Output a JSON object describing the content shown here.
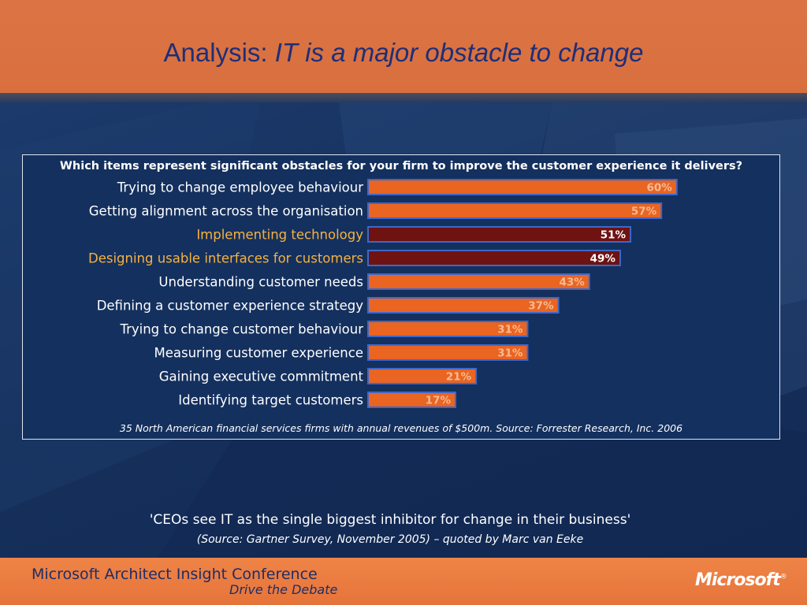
{
  "slide": {
    "title_prefix": "Analysis: ",
    "title_italic": "IT is a major obstacle to change"
  },
  "chart_data": {
    "type": "bar",
    "orientation": "horizontal",
    "title": "Which items represent significant obstacles for your firm to improve the customer experience it delivers?",
    "categories": [
      "Trying to change employee behaviour",
      "Getting alignment across the organisation",
      "Implementing technology",
      "Designing usable interfaces for customers",
      "Understanding customer needs",
      "Defining a customer experience strategy",
      "Trying to change customer behaviour",
      "Measuring customer experience",
      "Gaining executive commitment",
      "Identifying target customers"
    ],
    "values": [
      60,
      57,
      51,
      49,
      43,
      37,
      31,
      31,
      21,
      17
    ],
    "value_labels": [
      "60%",
      "57%",
      "51%",
      "49%",
      "43%",
      "37%",
      "31%",
      "31%",
      "21%",
      "17%"
    ],
    "highlighted": [
      false,
      false,
      true,
      true,
      false,
      false,
      false,
      false,
      false,
      false
    ],
    "colors": {
      "bar": "#ea6422",
      "bar_highlight": "#6e1212",
      "bar_border": "#3d68c9",
      "value_label": "#f6bb93",
      "value_label_highlight": "#ffffff",
      "category_label": "#ffffff",
      "category_label_highlight": "#f7b240"
    },
    "grid": false,
    "legend": "none",
    "footnote": "35 North American financial services firms with annual revenues of $500m.  Source: Forrester Research, Inc.  2006"
  },
  "quote": {
    "text": "'CEOs see IT as the single biggest inhibitor for change in their business'",
    "source": "(Source: Gartner Survey, November 2005) – quoted by Marc van Eeke"
  },
  "footer": {
    "conference": "Microsoft Architect Insight Conference",
    "tagline": "Drive the Debate",
    "logo_text": "Microsoft",
    "logo_mark": "®"
  }
}
